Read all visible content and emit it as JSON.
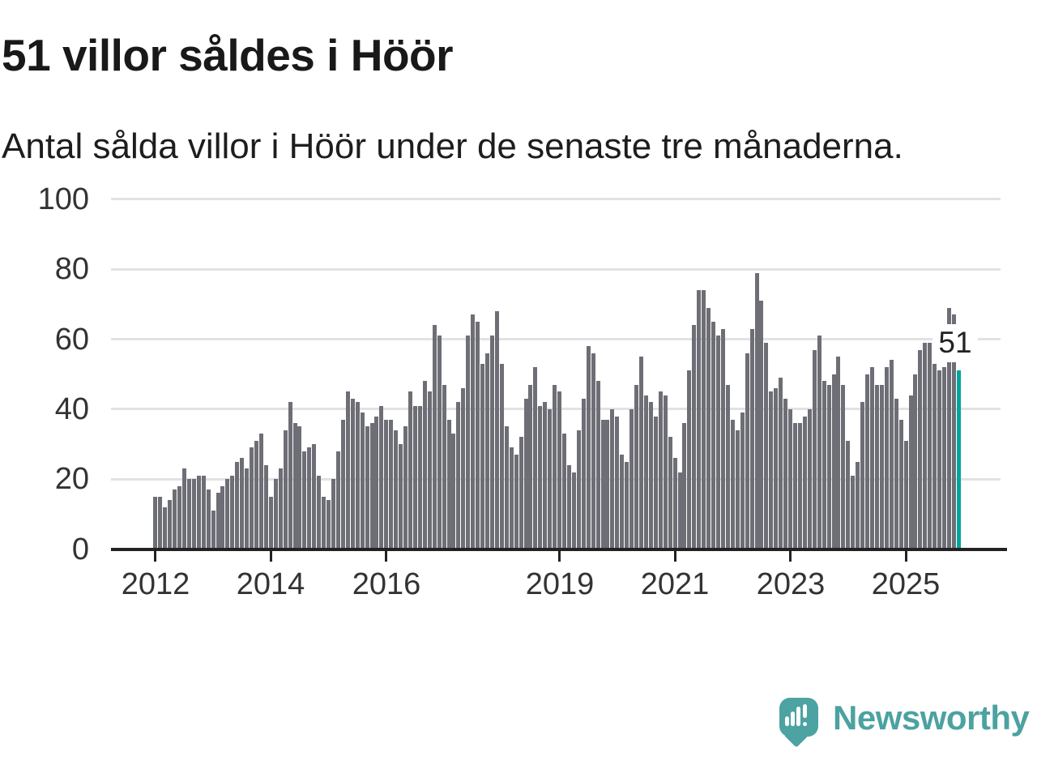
{
  "title": "51 villor såldes i Höör",
  "subtitle": "Antal sålda villor i Höör under de senaste tre månaderna.",
  "chart_data": {
    "type": "bar",
    "title": "51 villor såldes i Höör",
    "xlabel": "",
    "ylabel": "",
    "x_start": "2012-01",
    "x_end": "2025-12",
    "x_unit": "month",
    "ylim": [
      0,
      100
    ],
    "grid": true,
    "yticks": [
      0,
      20,
      40,
      60,
      80,
      100
    ],
    "xticks": [
      {
        "label": "2012",
        "month_index": 0
      },
      {
        "label": "2014",
        "month_index": 24
      },
      {
        "label": "2016",
        "month_index": 48
      },
      {
        "label": "2019",
        "month_index": 84
      },
      {
        "label": "2021",
        "month_index": 108
      },
      {
        "label": "2023",
        "month_index": 132
      },
      {
        "label": "2025",
        "month_index": 156
      }
    ],
    "values": [
      15,
      15,
      12,
      14,
      17,
      18,
      23,
      20,
      20,
      21,
      21,
      17,
      11,
      16,
      18,
      20,
      21,
      25,
      26,
      23,
      29,
      31,
      33,
      24,
      15,
      20,
      23,
      34,
      42,
      36,
      35,
      28,
      29,
      30,
      21,
      15,
      14,
      20,
      28,
      37,
      45,
      43,
      42,
      39,
      35,
      36,
      38,
      41,
      37,
      37,
      34,
      30,
      35,
      45,
      41,
      41,
      48,
      45,
      64,
      61,
      47,
      37,
      33,
      42,
      46,
      61,
      67,
      65,
      53,
      56,
      61,
      68,
      53,
      35,
      29,
      27,
      32,
      43,
      47,
      52,
      41,
      42,
      40,
      47,
      45,
      33,
      24,
      22,
      34,
      43,
      58,
      56,
      48,
      37,
      37,
      40,
      38,
      27,
      25,
      40,
      47,
      55,
      44,
      42,
      38,
      45,
      44,
      32,
      26,
      22,
      36,
      51,
      64,
      74,
      74,
      69,
      65,
      61,
      63,
      47,
      37,
      34,
      39,
      56,
      63,
      79,
      71,
      59,
      45,
      46,
      49,
      43,
      40,
      36,
      36,
      38,
      40,
      57,
      61,
      48,
      47,
      50,
      55,
      47,
      31,
      21,
      25,
      42,
      50,
      52,
      47,
      47,
      52,
      54,
      43,
      37,
      31,
      44,
      50,
      57,
      59,
      59,
      53,
      51,
      52,
      69,
      67,
      51
    ],
    "bar_color": "#6e6e76",
    "highlight_color": "#00a59c",
    "highlight_index": 167,
    "highlight_value": 51,
    "annotation": "51"
  },
  "footer": {
    "brand": "Newsworthy",
    "logo_icon": "newsworthy-speech-bubble-bar-chart-icon",
    "brand_color": "#4ca2a0"
  }
}
